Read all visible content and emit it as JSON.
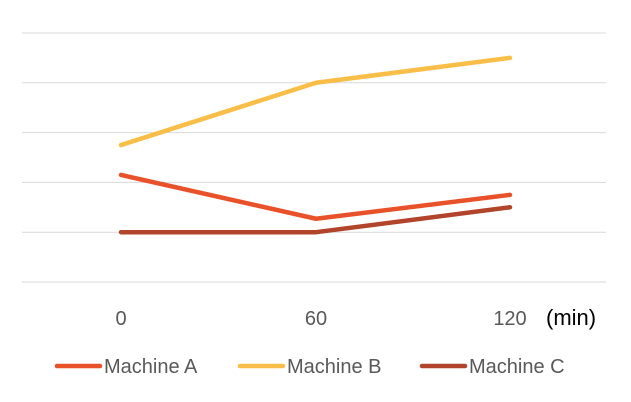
{
  "chart_data": {
    "type": "line",
    "title": "",
    "xlabel": "(min)",
    "ylabel": "",
    "x": [
      "0",
      "60",
      "120"
    ],
    "ylim": [
      0,
      5.2
    ],
    "grid": true,
    "legend": "bottom",
    "series": [
      {
        "name": "Machine A",
        "values": [
          2.15,
          1.27,
          1.75
        ],
        "color": "#E8512A"
      },
      {
        "name": "Machine B",
        "values": [
          2.75,
          4.0,
          4.5
        ],
        "color": "#F9BE47"
      },
      {
        "name": "Machine C",
        "values": [
          1.0,
          1.0,
          1.5
        ],
        "color": "#B1442A"
      }
    ]
  }
}
